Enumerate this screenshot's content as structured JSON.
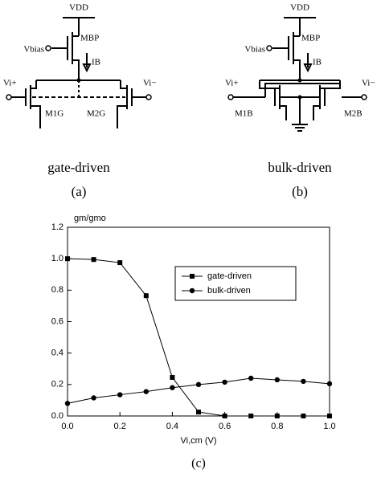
{
  "diagrams": [
    {
      "labels": [
        "VDD",
        "MBP",
        "Vbias",
        "IB",
        "Vi+",
        "Vi−",
        "M1G",
        "M2G"
      ],
      "caption": "gate-driven",
      "tag": "(a)"
    },
    {
      "labels": [
        "VDD",
        "MBP",
        "Vbias",
        "IB",
        "Vi+",
        "Vi−",
        "M1B",
        "M2B"
      ],
      "caption": "bulk-driven",
      "tag": "(b)"
    }
  ],
  "chart_data": {
    "type": "line",
    "y_label": "gm/gmo",
    "x_label": "Vi,cm (V)",
    "caption": "(c)",
    "x": [
      0,
      0.1,
      0.2,
      0.3,
      0.4,
      0.5,
      0.6,
      0.7,
      0.8,
      0.9,
      1.0
    ],
    "series": [
      {
        "name": "gate-driven",
        "color": "#000000",
        "marker": "square",
        "values": [
          1.0,
          0.995,
          0.975,
          0.765,
          0.245,
          0.025,
          0.0,
          0.0,
          0.0,
          0.0,
          0.0
        ]
      },
      {
        "name": "bulk-driven",
        "color": "#000000",
        "marker": "circle",
        "values": [
          0.08,
          0.115,
          0.135,
          0.155,
          0.18,
          0.2,
          0.215,
          0.24,
          0.23,
          0.22,
          0.205
        ]
      }
    ],
    "xlim": [
      0,
      1.0
    ],
    "ylim": [
      0,
      1.2
    ],
    "xticks": [
      {
        "value": 0,
        "label": "0.0"
      },
      0.2,
      0.4,
      0.6,
      0.8,
      {
        "value": 1.0,
        "label": "1.0"
      }
    ],
    "yticks": [
      {
        "value": 0,
        "label": "0.0"
      },
      0.2,
      0.4,
      0.6,
      0.8,
      {
        "value": 1.0,
        "label": "1.0"
      },
      1.2
    ]
  }
}
